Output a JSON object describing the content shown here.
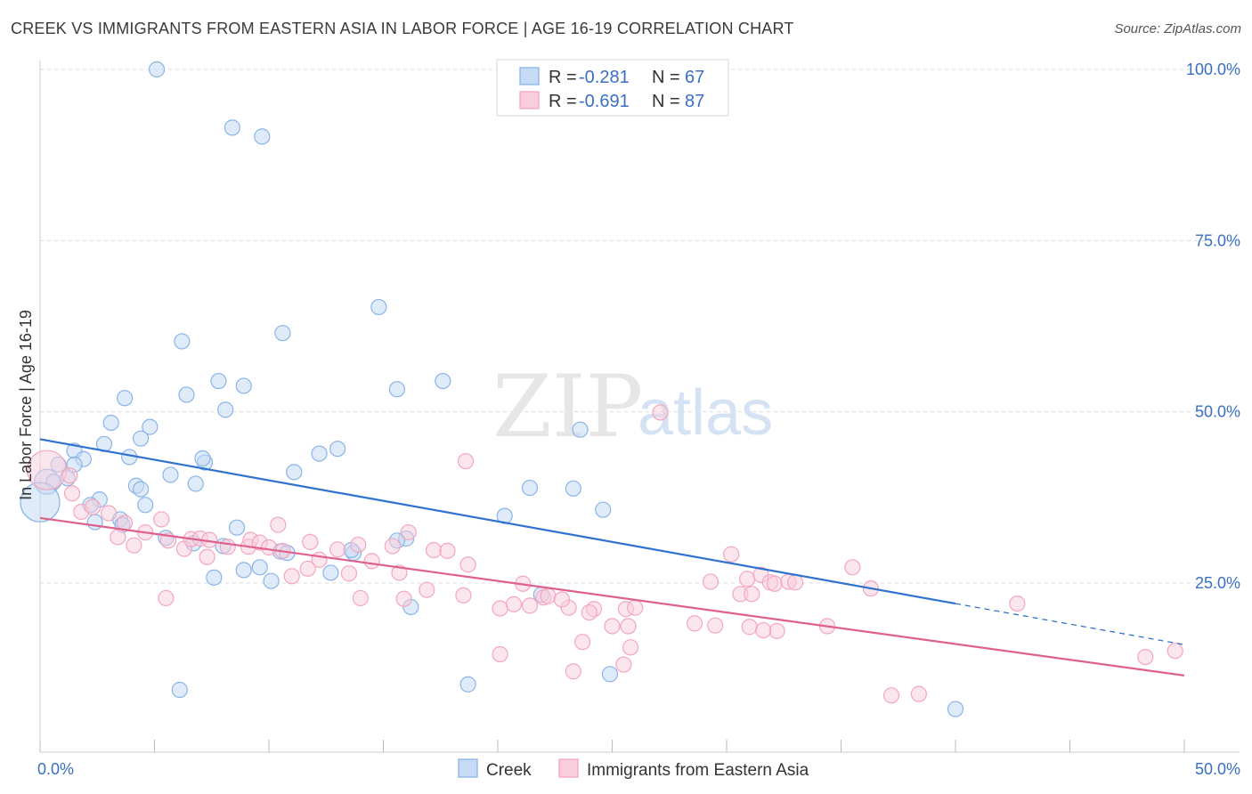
{
  "title": "CREEK VS IMMIGRANTS FROM EASTERN ASIA IN LABOR FORCE | AGE 16-19 CORRELATION CHART",
  "source": "Source: ZipAtlas.com",
  "watermark": {
    "zip": "ZIP",
    "atlas": "atlas"
  },
  "legend": {
    "r_label": "R =",
    "n_label": "N =",
    "rows": [
      {
        "r": "-0.281",
        "n": "67"
      },
      {
        "r": "-0.691",
        "n": "87"
      }
    ]
  },
  "chart_data": {
    "type": "scatter",
    "xlabel": "",
    "ylabel": "In Labor Force | Age 16-19",
    "xlim": [
      0,
      50
    ],
    "ylim": [
      0,
      105
    ],
    "x_tick_labels": [
      "0.0%",
      "50.0%"
    ],
    "y_ticks": [
      25,
      50,
      75,
      100
    ],
    "y_tick_labels": [
      "25.0%",
      "50.0%",
      "75.0%",
      "100.0%"
    ],
    "grid": true,
    "legend_position": "top-center",
    "series": [
      {
        "name": "Creek",
        "color": "#8ab4e8",
        "line_color": "#2f72d0",
        "trend": {
          "x0": 0,
          "y0": 46.0,
          "x1": 40,
          "y1": 22.0,
          "dash_to": 50,
          "dash_y": 16.0
        },
        "points": [
          [
            5.1,
            100
          ],
          [
            8.4,
            91.5
          ],
          [
            9.7,
            90.2
          ],
          [
            14.8,
            65.3
          ],
          [
            10.6,
            61.5
          ],
          [
            6.2,
            60.3
          ],
          [
            7.8,
            54.5
          ],
          [
            8.9,
            53.8
          ],
          [
            15.6,
            53.3
          ],
          [
            17.6,
            54.5
          ],
          [
            3.7,
            52
          ],
          [
            6.4,
            52.5
          ],
          [
            8.1,
            50.3
          ],
          [
            3.1,
            48.4
          ],
          [
            4.8,
            47.8
          ],
          [
            23.6,
            47.4
          ],
          [
            4.4,
            46.1
          ],
          [
            2.8,
            45.3
          ],
          [
            13.0,
            44.6
          ],
          [
            1.5,
            44.3
          ],
          [
            12.2,
            43.9
          ],
          [
            1.9,
            43.1
          ],
          [
            3.9,
            43.4
          ],
          [
            7.2,
            42.6
          ],
          [
            7.1,
            43.2
          ],
          [
            0.8,
            42.3
          ],
          [
            1.5,
            42.3
          ],
          [
            11.1,
            41.2
          ],
          [
            5.7,
            40.8
          ],
          [
            1.2,
            40.3
          ],
          [
            0.3,
            39.8
          ],
          [
            0.6,
            39.8
          ],
          [
            6.8,
            39.5
          ],
          [
            4.2,
            39.2
          ],
          [
            4.4,
            38.7
          ],
          [
            21.4,
            38.9
          ],
          [
            23.3,
            38.8
          ],
          [
            2.6,
            37.2
          ],
          [
            0.0,
            36.8
          ],
          [
            4.6,
            36.4
          ],
          [
            24.6,
            35.7
          ],
          [
            2.2,
            36.4
          ],
          [
            20.3,
            34.8
          ],
          [
            3.5,
            34.3
          ],
          [
            2.4,
            33.9
          ],
          [
            3.6,
            33.5
          ],
          [
            8.6,
            33.1
          ],
          [
            16.0,
            31.5
          ],
          [
            5.5,
            31.6
          ],
          [
            6.7,
            30.8
          ],
          [
            8.0,
            30.4
          ],
          [
            10.5,
            29.6
          ],
          [
            10.8,
            29.4
          ],
          [
            13.7,
            29.4
          ],
          [
            9.6,
            27.3
          ],
          [
            8.9,
            26.9
          ],
          [
            10.1,
            25.3
          ],
          [
            7.6,
            25.8
          ],
          [
            12.7,
            26.5
          ],
          [
            21.9,
            23.3
          ],
          [
            16.2,
            21.5
          ],
          [
            6.1,
            9.4
          ],
          [
            18.7,
            10.2
          ],
          [
            24.9,
            11.7
          ],
          [
            40.0,
            6.6
          ],
          [
            15.6,
            31.2
          ],
          [
            13.6,
            29.8
          ]
        ],
        "sizes": {
          "0,36.8": 22,
          "0.3,39.8": 14
        }
      },
      {
        "name": "Immigrants from Eastern Asia",
        "color": "#f3a6bf",
        "line_color": "#e0608c",
        "trend": {
          "x0": 0,
          "y0": 34.5,
          "x1": 50,
          "y1": 11.5
        },
        "points": [
          [
            27.1,
            49.9
          ],
          [
            18.6,
            42.8
          ],
          [
            0.3,
            41.5
          ],
          [
            1.3,
            40.7
          ],
          [
            1.4,
            38.1
          ],
          [
            1.8,
            35.4
          ],
          [
            2.3,
            36.1
          ],
          [
            3.0,
            35.2
          ],
          [
            3.7,
            33.8
          ],
          [
            5.3,
            34.3
          ],
          [
            4.6,
            32.4
          ],
          [
            5.6,
            31.2
          ],
          [
            3.4,
            31.7
          ],
          [
            4.1,
            30.5
          ],
          [
            6.3,
            30.0
          ],
          [
            6.6,
            31.4
          ],
          [
            7.0,
            31.5
          ],
          [
            7.4,
            31.3
          ],
          [
            8.2,
            30.3
          ],
          [
            9.1,
            30.3
          ],
          [
            9.2,
            31.3
          ],
          [
            9.6,
            30.9
          ],
          [
            10.4,
            33.5
          ],
          [
            11.8,
            31.0
          ],
          [
            10.0,
            30.2
          ],
          [
            10.6,
            29.7
          ],
          [
            13.0,
            29.9
          ],
          [
            13.9,
            30.6
          ],
          [
            15.4,
            30.4
          ],
          [
            16.1,
            32.4
          ],
          [
            17.2,
            29.8
          ],
          [
            17.8,
            29.7
          ],
          [
            7.3,
            28.8
          ],
          [
            12.2,
            28.4
          ],
          [
            14.5,
            28.2
          ],
          [
            18.7,
            27.7
          ],
          [
            11.0,
            26.0
          ],
          [
            11.7,
            27.1
          ],
          [
            13.5,
            26.4
          ],
          [
            15.7,
            26.5
          ],
          [
            5.5,
            22.8
          ],
          [
            14.0,
            22.8
          ],
          [
            15.9,
            22.7
          ],
          [
            16.9,
            24.0
          ],
          [
            18.5,
            23.2
          ],
          [
            20.1,
            21.3
          ],
          [
            20.7,
            21.9
          ],
          [
            21.1,
            24.9
          ],
          [
            22.0,
            22.9
          ],
          [
            23.1,
            21.4
          ],
          [
            21.4,
            21.7
          ],
          [
            22.2,
            23.1
          ],
          [
            22.8,
            22.6
          ],
          [
            24.2,
            21.2
          ],
          [
            25.6,
            21.2
          ],
          [
            29.3,
            25.2
          ],
          [
            30.2,
            29.2
          ],
          [
            30.6,
            23.4
          ],
          [
            31.1,
            23.4
          ],
          [
            30.9,
            25.6
          ],
          [
            31.5,
            26.2
          ],
          [
            31.9,
            25.1
          ],
          [
            32.1,
            24.9
          ],
          [
            32.7,
            25.2
          ],
          [
            25.0,
            18.7
          ],
          [
            25.7,
            18.7
          ],
          [
            28.6,
            19.1
          ],
          [
            29.5,
            18.8
          ],
          [
            31.0,
            18.6
          ],
          [
            32.2,
            18.0
          ],
          [
            34.4,
            18.7
          ],
          [
            24.0,
            20.7
          ],
          [
            26.0,
            21.4
          ],
          [
            23.7,
            16.4
          ],
          [
            20.1,
            14.6
          ],
          [
            25.8,
            15.6
          ],
          [
            23.3,
            12.1
          ],
          [
            25.5,
            13.1
          ],
          [
            31.6,
            18.1
          ],
          [
            33.0,
            25.1
          ],
          [
            36.3,
            24.2
          ],
          [
            37.2,
            8.6
          ],
          [
            38.4,
            8.8
          ],
          [
            42.7,
            22.0
          ],
          [
            48.3,
            14.2
          ],
          [
            49.6,
            15.1
          ],
          [
            35.5,
            27.3
          ]
        ],
        "sizes": {
          "0.3,41.5": 22
        }
      }
    ]
  },
  "bottom_legend": [
    {
      "label": "Creek"
    },
    {
      "label": "Immigrants from Eastern Asia"
    }
  ]
}
